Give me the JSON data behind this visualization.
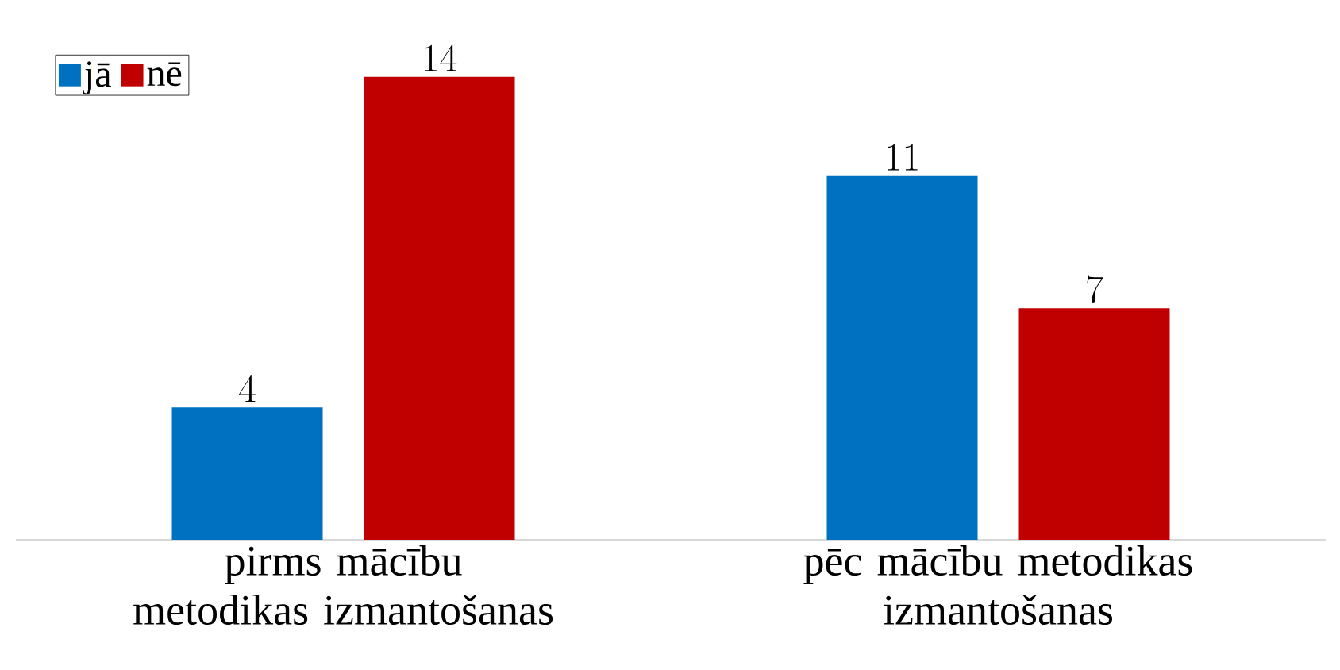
{
  "chart_data": {
    "type": "bar",
    "categories": [
      "pirms mācību metodikas izmantošanas",
      "pēc mācību metodikas izmantošanas"
    ],
    "series": [
      {
        "name": "jā",
        "color": "#0070c0",
        "values": [
          4,
          11
        ]
      },
      {
        "name": "nē",
        "color": "#c00000",
        "values": [
          14,
          7
        ]
      }
    ],
    "data_labels": true,
    "legend": "top left"
  }
}
